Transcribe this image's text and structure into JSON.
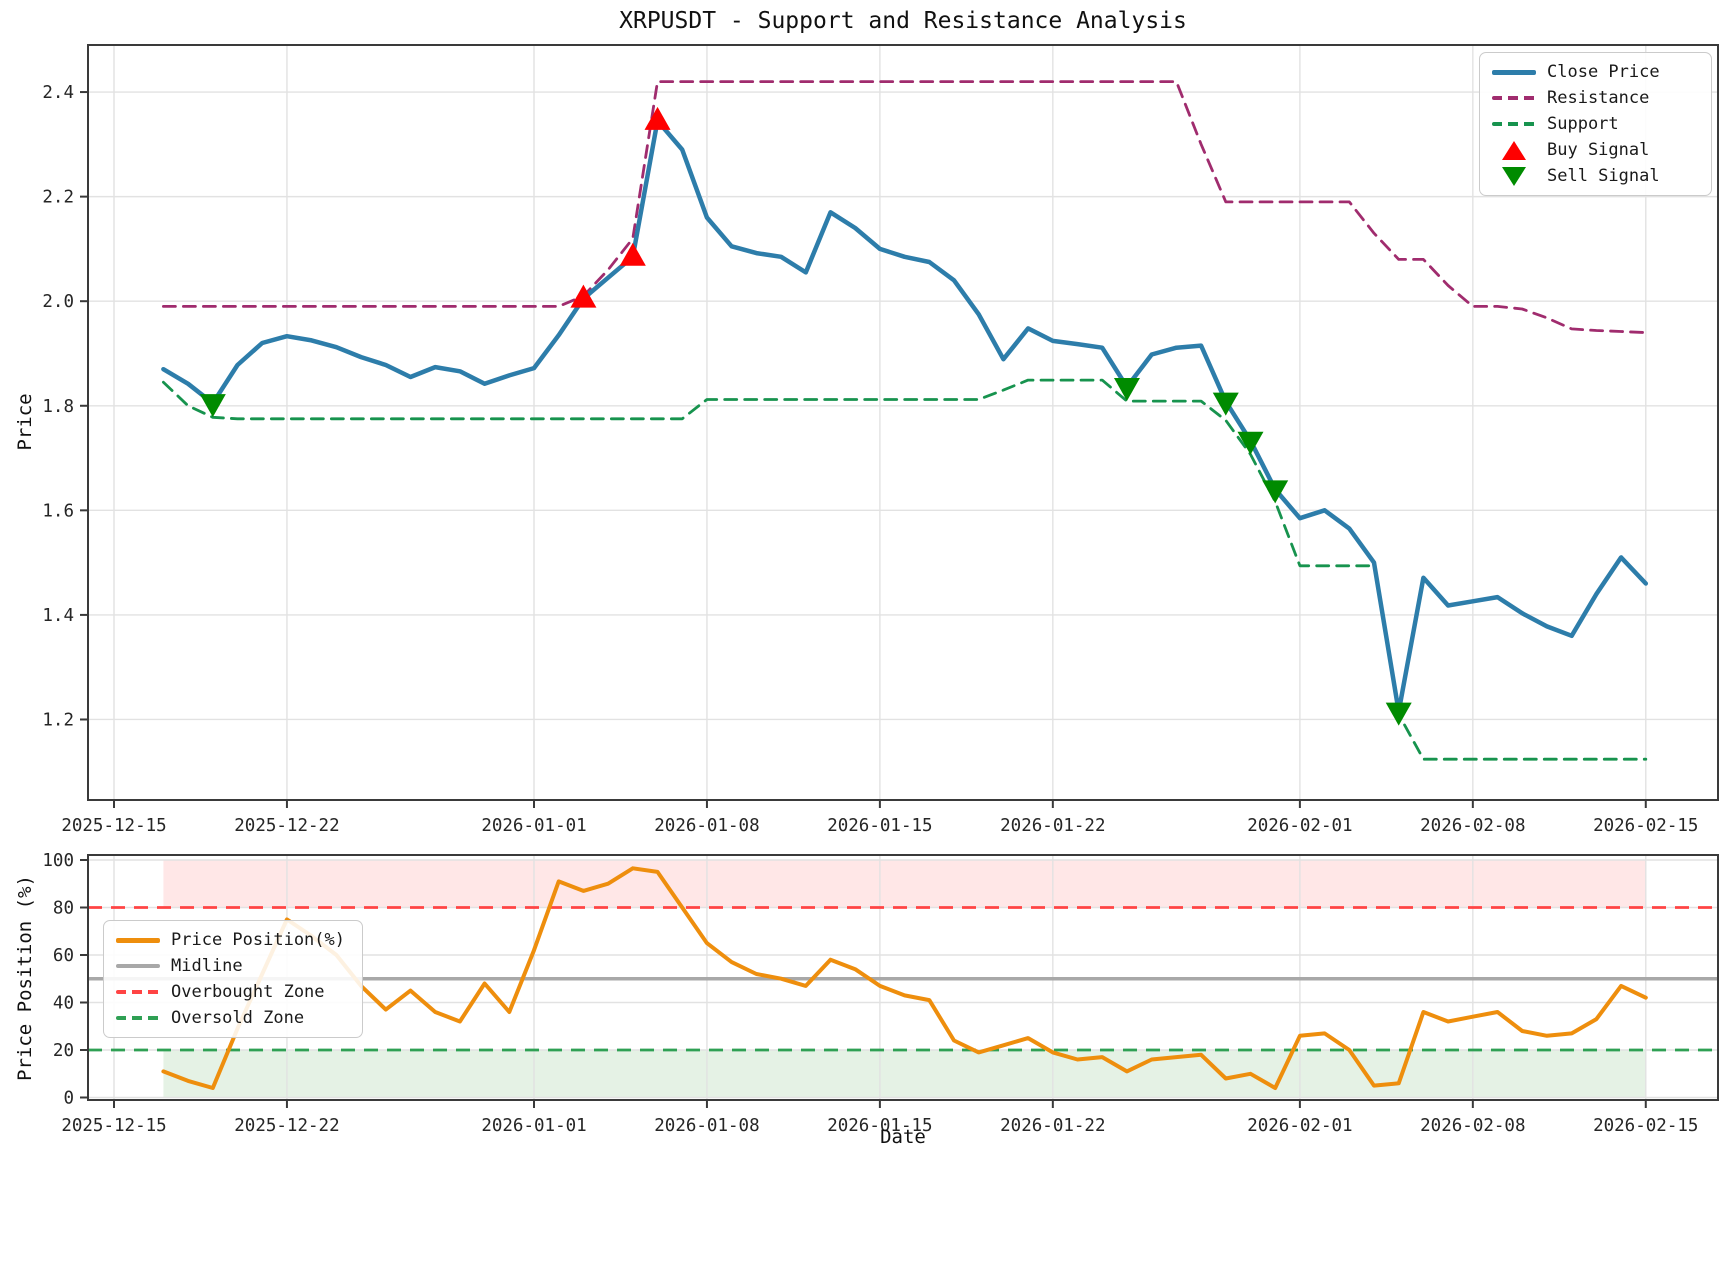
{
  "title": "XRPUSDT - Support and Resistance Analysis",
  "colors": {
    "close": "#2D7DAA",
    "resistance": "#A02C6E",
    "support": "#17934E",
    "buy_signal": "#FE0000",
    "sell_signal": "#008B00",
    "price_position": "#EE8E0D",
    "midline": "#A8A8A8",
    "overbought": "#FF4444",
    "oversold": "#2FA054",
    "grid": "#E2E2E2",
    "spine": "#3A3A3A",
    "text": "#262626",
    "overbought_band": "rgba(255,70,70,0.13)",
    "oversold_band": "rgba(70,160,70,0.14)"
  },
  "x_axis": {
    "tick_labels": [
      "2025-12-15",
      "2025-12-22",
      "2026-01-01",
      "2026-01-08",
      "2026-01-15",
      "2026-01-22",
      "2026-02-01",
      "2026-02-08",
      "2026-02-15"
    ],
    "tick_day_offsets": [
      0,
      7,
      17,
      24,
      31,
      38,
      48,
      55,
      62
    ]
  },
  "chart_data": [
    {
      "type": "line",
      "title": "XRPUSDT - Support and Resistance Analysis",
      "ylabel": "Price",
      "x_start_date": "2025-12-17",
      "x_data_first_day_offset": 2,
      "ylim": [
        1.046,
        2.49
      ],
      "yticks": [
        "2.4",
        "2.2",
        "2.0",
        "1.8",
        "1.6",
        "1.4",
        "1.2"
      ],
      "legend": [
        "Close Price",
        "Resistance",
        "Support",
        "Buy Signal",
        "Sell Signal"
      ],
      "series": [
        {
          "name": "Close Price",
          "style": "solid",
          "values": [
            1.87,
            1.842,
            1.805,
            1.878,
            1.92,
            1.933,
            1.925,
            1.912,
            1.893,
            1.878,
            1.855,
            1.874,
            1.866,
            1.842,
            1.858,
            1.872,
            1.935,
            2.005,
            2.045,
            2.085,
            2.345,
            2.29,
            2.16,
            2.105,
            2.092,
            2.085,
            2.055,
            2.17,
            2.14,
            2.1,
            2.085,
            2.075,
            2.04,
            1.975,
            1.889,
            1.948,
            1.924,
            1.918,
            1.911,
            1.836,
            1.898,
            1.911,
            1.915,
            1.808,
            1.733,
            1.64,
            1.585,
            1.6,
            1.565,
            1.5,
            1.215,
            1.471,
            1.418,
            1.426,
            1.434,
            1.403,
            1.378,
            1.36,
            1.44,
            1.51,
            1.46
          ]
        },
        {
          "name": "Resistance",
          "style": "dashed",
          "values": [
            1.99,
            1.99,
            1.99,
            1.99,
            1.99,
            1.99,
            1.99,
            1.99,
            1.99,
            1.99,
            1.99,
            1.99,
            1.99,
            1.99,
            1.99,
            1.99,
            1.99,
            2.01,
            2.06,
            2.12,
            2.42,
            2.42,
            2.42,
            2.42,
            2.42,
            2.42,
            2.42,
            2.42,
            2.42,
            2.42,
            2.42,
            2.42,
            2.42,
            2.42,
            2.42,
            2.42,
            2.42,
            2.42,
            2.42,
            2.42,
            2.42,
            2.42,
            2.3,
            2.19,
            2.19,
            2.19,
            2.19,
            2.19,
            2.19,
            2.13,
            2.08,
            2.08,
            2.03,
            1.99,
            1.99,
            1.985,
            1.968,
            1.947,
            1.944,
            1.942,
            1.94
          ]
        },
        {
          "name": "Support",
          "style": "dashed",
          "values": [
            1.845,
            1.8,
            1.778,
            1.775,
            1.775,
            1.775,
            1.775,
            1.775,
            1.775,
            1.775,
            1.775,
            1.775,
            1.775,
            1.775,
            1.775,
            1.775,
            1.775,
            1.775,
            1.775,
            1.775,
            1.775,
            1.775,
            1.812,
            1.812,
            1.812,
            1.812,
            1.812,
            1.812,
            1.812,
            1.812,
            1.812,
            1.812,
            1.812,
            1.812,
            1.83,
            1.849,
            1.849,
            1.849,
            1.849,
            1.809,
            1.809,
            1.809,
            1.809,
            1.772,
            1.707,
            1.617,
            1.494,
            1.494,
            1.494,
            1.494,
            1.21,
            1.124,
            1.124,
            1.124,
            1.124,
            1.124,
            1.124,
            1.124,
            1.124,
            1.124,
            1.124
          ]
        }
      ],
      "buy_signals": [
        {
          "date": "2026-01-03",
          "index": 17,
          "value": 2.005
        },
        {
          "date": "2026-01-05",
          "index": 19,
          "value": 2.085
        },
        {
          "date": "2026-01-06",
          "index": 20,
          "value": 2.345
        }
      ],
      "sell_signals": [
        {
          "date": "2025-12-19",
          "index": 2,
          "value": 1.805
        },
        {
          "date": "2026-01-25",
          "index": 39,
          "value": 1.836
        },
        {
          "date": "2026-01-29",
          "index": 43,
          "value": 1.808
        },
        {
          "date": "2026-01-30",
          "index": 44,
          "value": 1.733
        },
        {
          "date": "2026-01-31",
          "index": 45,
          "value": 1.64
        },
        {
          "date": "2026-02-05",
          "index": 50,
          "value": 1.215
        }
      ]
    },
    {
      "type": "line",
      "ylabel": "Price Position (%)",
      "xlabel": "Date",
      "x_start_date": "2025-12-17",
      "x_data_first_day_offset": 2,
      "ylim": [
        -1.05,
        102.1
      ],
      "yticks": [
        "100",
        "80",
        "60",
        "40",
        "20",
        "0"
      ],
      "legend": [
        "Price Position(%)",
        "Midline",
        "Overbought Zone",
        "Oversold Zone"
      ],
      "series": [
        {
          "name": "Price Position(%)",
          "values": [
            11,
            7,
            4,
            29,
            52,
            75,
            68,
            60,
            47,
            37,
            45,
            36,
            32,
            48,
            36,
            62,
            91,
            87,
            90,
            96.5,
            95,
            80,
            65,
            57,
            52,
            50,
            47,
            58,
            54,
            47,
            43,
            41,
            24,
            19,
            22,
            25,
            19,
            16,
            17,
            11,
            16,
            17,
            18,
            8,
            10,
            4,
            26,
            27,
            20,
            5,
            6,
            36,
            32,
            34,
            36,
            28,
            26,
            27,
            33,
            47,
            42
          ]
        }
      ],
      "midline": {
        "label": "Midline",
        "value": 50
      },
      "overbought": {
        "label": "Overbought Zone",
        "value": 80,
        "band": [
          80,
          100
        ]
      },
      "oversold": {
        "label": "Oversold Zone",
        "value": 20,
        "band": [
          0,
          20
        ]
      }
    }
  ]
}
